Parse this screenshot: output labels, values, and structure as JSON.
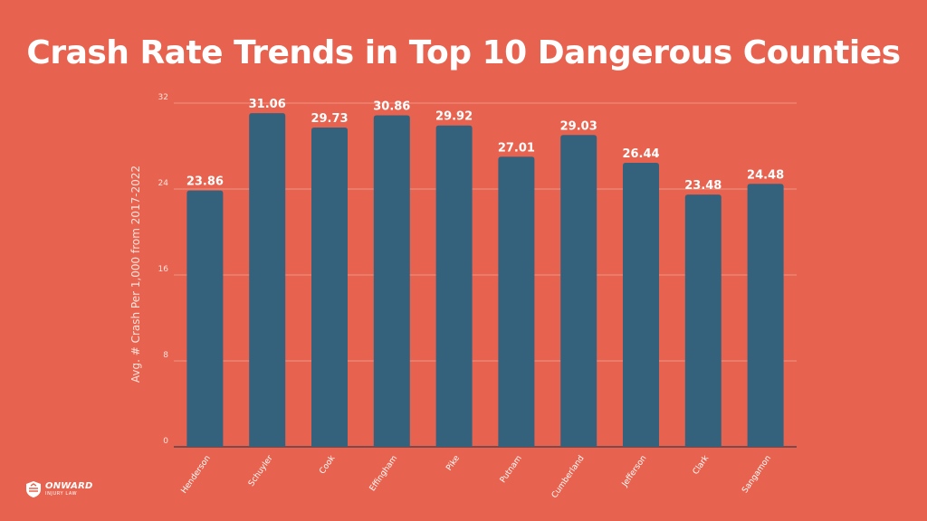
{
  "title": "Crash Rate Trends in Top 10 Dangerous Counties",
  "colors": {
    "background": "#e8634f",
    "bar": "#34627d",
    "text": "#ffffff",
    "axis_text": "#fde3dc",
    "grid": "#f4a497"
  },
  "brand": {
    "name": "ONWARD",
    "tagline": "INJURY LAW"
  },
  "chart_data": {
    "type": "bar",
    "title": "Crash Rate Trends in Top 10 Dangerous Counties",
    "xlabel": "",
    "ylabel": "Avg. # Crash Per 1,000 from 2017-2022",
    "categories": [
      "Henderson",
      "Schuyler",
      "Cook",
      "Effingham",
      "Pike",
      "Putnam",
      "Cumberland",
      "Jefferson",
      "Clark",
      "Sangamon"
    ],
    "values": [
      23.86,
      31.06,
      29.73,
      30.86,
      29.92,
      27.01,
      29.03,
      26.44,
      23.48,
      24.48
    ],
    "value_labels": [
      "23.86",
      "31.06",
      "29.73",
      "30.86",
      "29.92",
      "27.01",
      "29.03",
      "26.44",
      "23.48",
      "24.48"
    ],
    "ylim": [
      0,
      32
    ],
    "yticks": [
      0,
      8,
      16,
      24,
      32
    ],
    "grid": true
  }
}
